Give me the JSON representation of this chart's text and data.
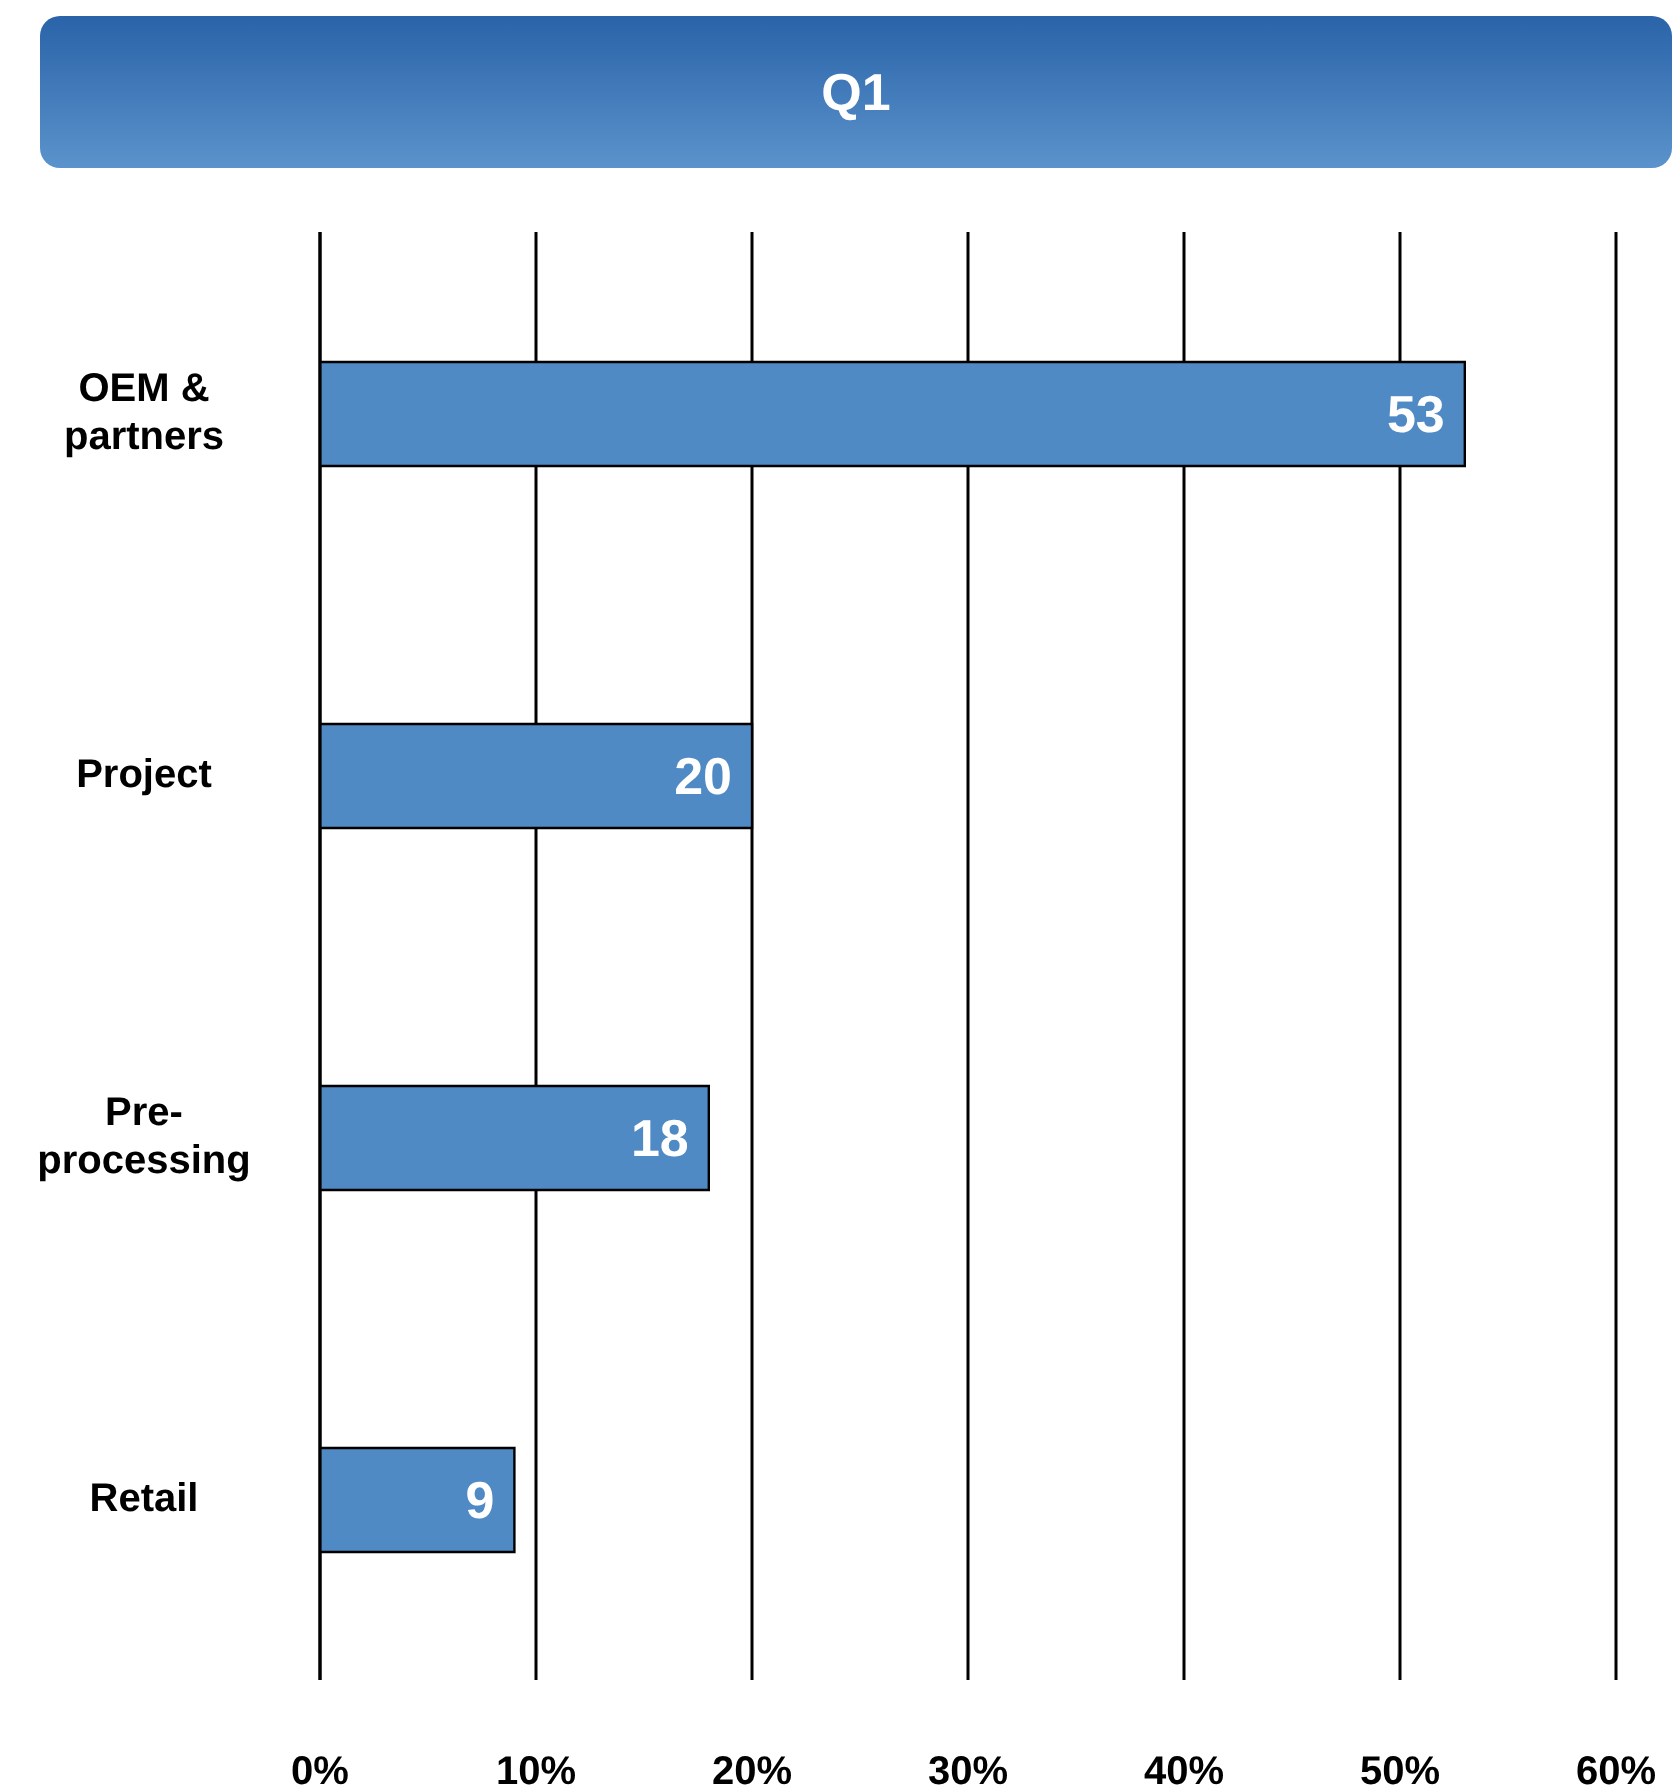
{
  "chart_data": {
    "type": "bar",
    "orientation": "horizontal",
    "title": "Q1",
    "categories": [
      "OEM & partners",
      "Project",
      "Pre-processing",
      "Retail"
    ],
    "values": [
      53,
      20,
      18,
      9
    ],
    "color": "#4f8ac4",
    "data_labels": true,
    "grid": "x",
    "legend": false,
    "xlim": [
      0,
      60
    ],
    "xticks": [
      {
        "value": 0,
        "label": "0%"
      },
      {
        "value": 10,
        "label": "10%"
      },
      {
        "value": 20,
        "label": "20%"
      },
      {
        "value": 30,
        "label": "30%"
      },
      {
        "value": 40,
        "label": "40%"
      },
      {
        "value": 50,
        "label": "50%"
      },
      {
        "value": 60,
        "label": "60%"
      }
    ]
  }
}
